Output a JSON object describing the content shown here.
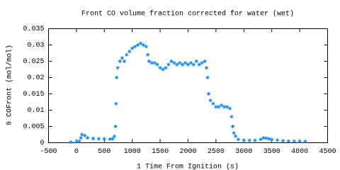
{
  "chart_data": {
    "type": "scatter",
    "title": "Front CO volume fraction corrected for water (wet)",
    "x_label": "1 Time From Ignition (s)",
    "y_label": "9 COFront (mol/mol)",
    "xlim": [
      -500,
      4500
    ],
    "xticks": [
      -500,
      0,
      500,
      1000,
      1500,
      2000,
      2500,
      3000,
      3500,
      4000,
      4500
    ],
    "ylim": [
      0,
      0.035
    ],
    "yticks": [
      0,
      0.005,
      0.01,
      0.015,
      0.02,
      0.025,
      0.03,
      0.035
    ],
    "grid": false,
    "series": [
      {
        "name": "COFront",
        "color": "#1e8ef0",
        "x": [
          -100,
          0,
          50,
          80,
          100,
          150,
          200,
          300,
          400,
          500,
          600,
          650,
          680,
          700,
          710,
          720,
          740,
          780,
          820,
          860,
          900,
          950,
          1000,
          1050,
          1100,
          1150,
          1200,
          1250,
          1280,
          1300,
          1350,
          1400,
          1450,
          1500,
          1550,
          1600,
          1650,
          1700,
          1750,
          1800,
          1850,
          1900,
          1950,
          2000,
          2050,
          2100,
          2150,
          2200,
          2250,
          2300,
          2330,
          2350,
          2370,
          2400,
          2450,
          2500,
          2550,
          2600,
          2650,
          2700,
          2750,
          2780,
          2800,
          2820,
          2850,
          2900,
          3000,
          3100,
          3200,
          3300,
          3350,
          3400,
          3450,
          3500,
          3600,
          3700,
          3800,
          3900,
          4000,
          4100
        ],
        "values": [
          0.0002,
          0.0003,
          0.0005,
          0.0015,
          0.0025,
          0.0022,
          0.0015,
          0.0013,
          0.0012,
          0.0012,
          0.0011,
          0.0012,
          0.002,
          0.005,
          0.012,
          0.02,
          0.023,
          0.025,
          0.026,
          0.025,
          0.027,
          0.028,
          0.029,
          0.0295,
          0.03,
          0.0305,
          0.03,
          0.0295,
          0.027,
          0.025,
          0.0245,
          0.0245,
          0.024,
          0.023,
          0.0225,
          0.023,
          0.024,
          0.025,
          0.0245,
          0.024,
          0.0245,
          0.024,
          0.0245,
          0.024,
          0.0245,
          0.024,
          0.025,
          0.024,
          0.0245,
          0.025,
          0.023,
          0.02,
          0.015,
          0.013,
          0.012,
          0.011,
          0.011,
          0.0115,
          0.011,
          0.011,
          0.0105,
          0.008,
          0.005,
          0.003,
          0.002,
          0.001,
          0.0008,
          0.0007,
          0.0007,
          0.001,
          0.0015,
          0.0014,
          0.0012,
          0.001,
          0.0008,
          0.0006,
          0.0005,
          0.0005,
          0.0004,
          0.0004
        ]
      }
    ]
  }
}
